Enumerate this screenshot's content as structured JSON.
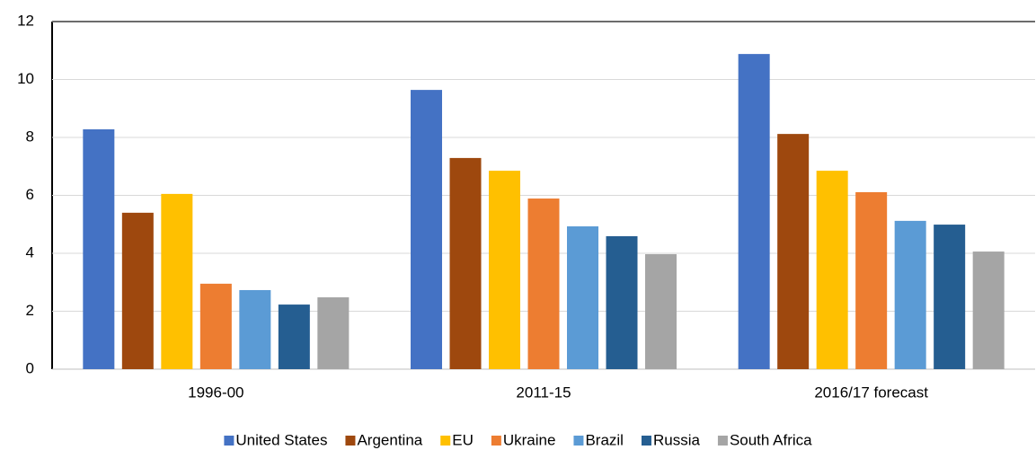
{
  "chart_data": {
    "type": "bar",
    "categories": [
      "1996-00",
      "2011-15",
      "2016/17 forecast"
    ],
    "series": [
      {
        "name": "United States",
        "color": "#4472c4",
        "values": [
          8.28,
          9.64,
          10.88
        ]
      },
      {
        "name": "Argentina",
        "color": "#9e480e",
        "values": [
          5.4,
          7.29,
          8.12
        ]
      },
      {
        "name": "EU",
        "color": "#ffc000",
        "values": [
          6.05,
          6.85,
          6.85
        ]
      },
      {
        "name": "Ukraine",
        "color": "#ed7d31",
        "values": [
          2.95,
          5.89,
          6.11
        ]
      },
      {
        "name": "Brazil",
        "color": "#5b9bd5",
        "values": [
          2.73,
          4.93,
          5.12
        ]
      },
      {
        "name": "Russia",
        "color": "#255e91",
        "values": [
          2.23,
          4.59,
          4.99
        ]
      },
      {
        "name": "South Africa",
        "color": "#a5a5a5",
        "values": [
          2.48,
          3.97,
          4.06
        ]
      }
    ],
    "ylim": [
      0,
      12
    ],
    "yticks": [
      0,
      2,
      4,
      6,
      8,
      10,
      12
    ],
    "grid": true,
    "legend": "bottom"
  }
}
